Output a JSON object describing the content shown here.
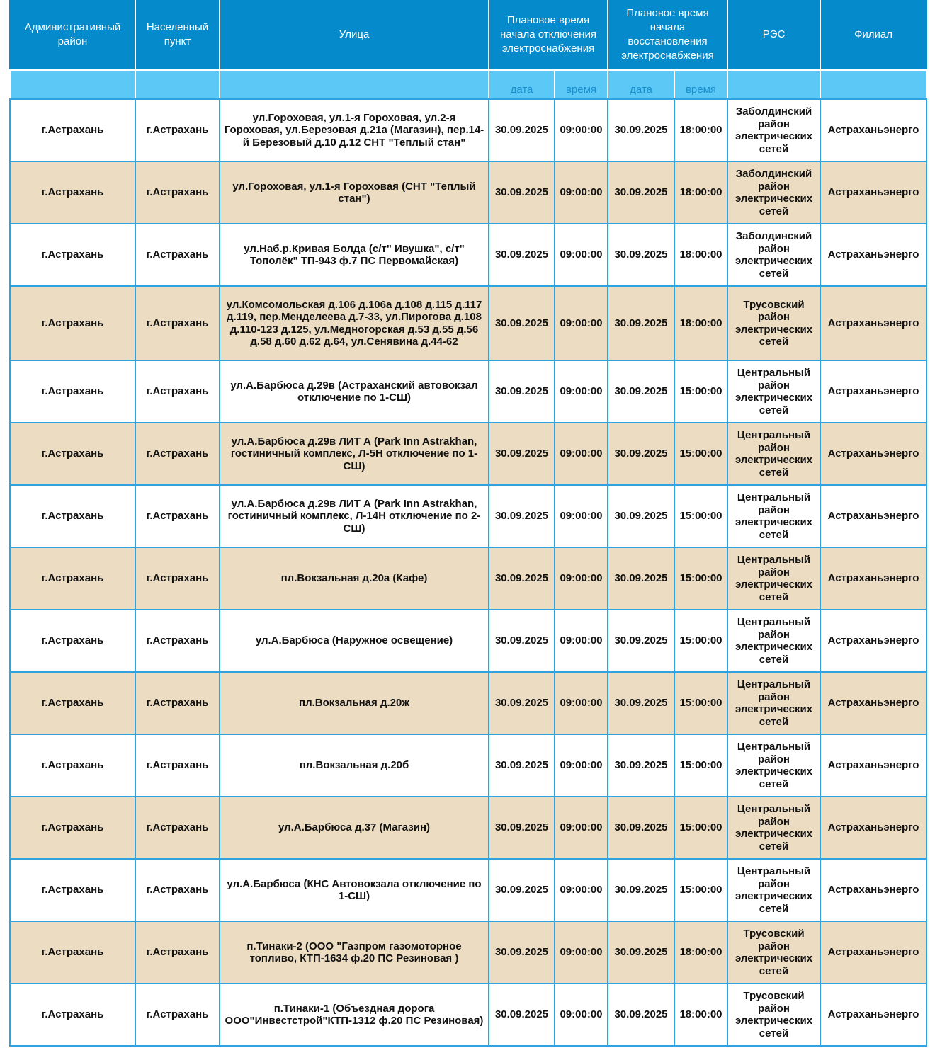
{
  "header": {
    "district": "Административный район",
    "locality": "Населенный пункт",
    "street": "Улица",
    "off_start": "Плановое время начала отключения электроснабжения",
    "restore": "Плановое время начала восстановления электроснабжения",
    "res": "РЭС",
    "branch": "Филиал",
    "date": "дата",
    "time": "время"
  },
  "colors": {
    "header": "#058bcb",
    "subheader": "#5bc8f5",
    "row_alt": "#ecdcc2",
    "border": "#2ea3e0"
  },
  "rows": [
    {
      "district": "г.Астрахань",
      "locality": "г.Астрахань",
      "street": "ул.Гороховая, ул.1-я Гороховая, ул.2-я Гороховая, ул.Березовая д.21а (Магазин), пер.14-й Березовый д.10 д.12 СНТ \"Теплый стан\"",
      "off_date": "30.09.2025",
      "off_time": "09:00:00",
      "on_date": "30.09.2025",
      "on_time": "18:00:00",
      "res": "Заболдинский район электрических сетей",
      "branch": "Астраханьэнерго"
    },
    {
      "district": "г.Астрахань",
      "locality": "г.Астрахань",
      "street": "ул.Гороховая, ул.1-я Гороховая (СНТ \"Теплый стан\")",
      "off_date": "30.09.2025",
      "off_time": "09:00:00",
      "on_date": "30.09.2025",
      "on_time": "18:00:00",
      "res": "Заболдинский район электрических сетей",
      "branch": "Астраханьэнерго"
    },
    {
      "district": "г.Астрахань",
      "locality": "г.Астрахань",
      "street": "ул.Наб.р.Кривая Болда (с/т\" Ивушка\", с/т\" Тополёк\" ТП-943 ф.7 ПС Первомайская)",
      "off_date": "30.09.2025",
      "off_time": "09:00:00",
      "on_date": "30.09.2025",
      "on_time": "18:00:00",
      "res": "Заболдинский район электрических сетей",
      "branch": "Астраханьэнерго"
    },
    {
      "district": "г.Астрахань",
      "locality": "г.Астрахань",
      "street": "ул.Комсомольская д.106 д.106а д.108 д.115 д.117 д.119, пер.Менделеева д.7-33, ул.Пирогова д.108 д.110-123 д.125, ул.Медногорская д.53 д.55 д.56 д.58 д.60 д.62 д.64, ул.Сенявина д.44-62",
      "off_date": "30.09.2025",
      "off_time": "09:00:00",
      "on_date": "30.09.2025",
      "on_time": "18:00:00",
      "res": "Трусовский район электрических сетей",
      "branch": "Астраханьэнерго"
    },
    {
      "district": "г.Астрахань",
      "locality": "г.Астрахань",
      "street": "ул.А.Барбюса д.29в (Астраханский автовокзал отключение по 1-СШ)",
      "off_date": "30.09.2025",
      "off_time": "09:00:00",
      "on_date": "30.09.2025",
      "on_time": "15:00:00",
      "res": "Центральный район электрических сетей",
      "branch": "Астраханьэнерго"
    },
    {
      "district": "г.Астрахань",
      "locality": "г.Астрахань",
      "street": "ул.А.Барбюса д.29в ЛИТ А (Park Inn Astrakhan, гостиничный комплекс, Л-5Н отключение по 1-СШ)",
      "off_date": "30.09.2025",
      "off_time": "09:00:00",
      "on_date": "30.09.2025",
      "on_time": "15:00:00",
      "res": "Центральный район электрических сетей",
      "branch": "Астраханьэнерго"
    },
    {
      "district": "г.Астрахань",
      "locality": "г.Астрахань",
      "street": "ул.А.Барбюса д.29в ЛИТ А (Park Inn Astrakhan, гостиничный комплекс, Л-14Н отключение по 2-СШ)",
      "off_date": "30.09.2025",
      "off_time": "09:00:00",
      "on_date": "30.09.2025",
      "on_time": "15:00:00",
      "res": "Центральный район электрических сетей",
      "branch": "Астраханьэнерго"
    },
    {
      "district": "г.Астрахань",
      "locality": "г.Астрахань",
      "street": "пл.Вокзальная д.20а (Кафе)",
      "off_date": "30.09.2025",
      "off_time": "09:00:00",
      "on_date": "30.09.2025",
      "on_time": "15:00:00",
      "res": "Центральный район электрических сетей",
      "branch": "Астраханьэнерго"
    },
    {
      "district": "г.Астрахань",
      "locality": "г.Астрахань",
      "street": "ул.А.Барбюса (Наружное освещение)",
      "off_date": "30.09.2025",
      "off_time": "09:00:00",
      "on_date": "30.09.2025",
      "on_time": "15:00:00",
      "res": "Центральный район электрических сетей",
      "branch": "Астраханьэнерго"
    },
    {
      "district": "г.Астрахань",
      "locality": "г.Астрахань",
      "street": "пл.Вокзальная д.20ж",
      "off_date": "30.09.2025",
      "off_time": "09:00:00",
      "on_date": "30.09.2025",
      "on_time": "15:00:00",
      "res": "Центральный район электрических сетей",
      "branch": "Астраханьэнерго"
    },
    {
      "district": "г.Астрахань",
      "locality": "г.Астрахань",
      "street": "пл.Вокзальная д.20б",
      "off_date": "30.09.2025",
      "off_time": "09:00:00",
      "on_date": "30.09.2025",
      "on_time": "15:00:00",
      "res": "Центральный район электрических сетей",
      "branch": "Астраханьэнерго"
    },
    {
      "district": "г.Астрахань",
      "locality": "г.Астрахань",
      "street": "ул.А.Барбюса д.37 (Магазин)",
      "off_date": "30.09.2025",
      "off_time": "09:00:00",
      "on_date": "30.09.2025",
      "on_time": "15:00:00",
      "res": "Центральный район электрических сетей",
      "branch": "Астраханьэнерго"
    },
    {
      "district": "г.Астрахань",
      "locality": "г.Астрахань",
      "street": "ул.А.Барбюса (КНС Автовокзала отключение по 1-СШ)",
      "off_date": "30.09.2025",
      "off_time": "09:00:00",
      "on_date": "30.09.2025",
      "on_time": "15:00:00",
      "res": "Центральный район электрических сетей",
      "branch": "Астраханьэнерго"
    },
    {
      "district": "г.Астрахань",
      "locality": "г.Астрахань",
      "street": "п.Тинаки-2 (ООО \"Газпром газомоторное топливо, КТП-1634 ф.20 ПС Резиновая )",
      "off_date": "30.09.2025",
      "off_time": "09:00:00",
      "on_date": "30.09.2025",
      "on_time": "18:00:00",
      "res": "Трусовский район электрических сетей",
      "branch": "Астраханьэнерго"
    },
    {
      "district": "г.Астрахань",
      "locality": "г.Астрахань",
      "street": "п.Тинаки-1 (Объездная дорога ООО\"Инвестстрой\"КТП-1312 ф.20 ПС Резиновая)",
      "off_date": "30.09.2025",
      "off_time": "09:00:00",
      "on_date": "30.09.2025",
      "on_time": "18:00:00",
      "res": "Трусовский район электрических сетей",
      "branch": "Астраханьэнерго"
    }
  ]
}
